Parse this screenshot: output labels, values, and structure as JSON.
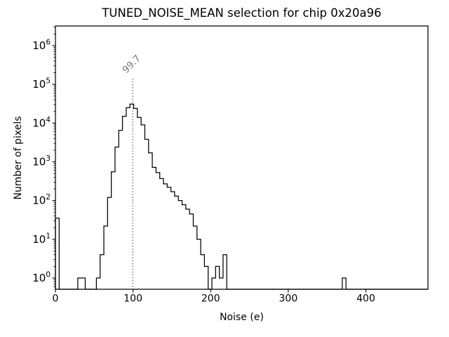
{
  "title": "TUNED_NOISE_MEAN selection for chip 0x20a96",
  "axes": {
    "xlabel": "Noise (e)",
    "ylabel": "Number of pixels",
    "x_ticks": [
      0,
      100,
      200,
      300,
      400
    ],
    "y_tick_exponents": [
      0,
      1,
      2,
      3,
      4,
      5,
      6
    ]
  },
  "annotation": {
    "label": "99.7",
    "value": 99.7,
    "color": "#7a7a7a"
  },
  "chart_data": {
    "type": "bar",
    "subtype": "step-histogram",
    "title": "TUNED_NOISE_MEAN selection for chip 0x20a96",
    "xlabel": "Noise (e)",
    "ylabel": "Number of pixels",
    "x_range": [
      0,
      480
    ],
    "y_scale": "log",
    "y_range": [
      0.5,
      3000000
    ],
    "grid": false,
    "legend": "none",
    "line_color": "#000000",
    "bin_width": 4.8,
    "bins_nonzero": [
      [
        0,
        35
      ],
      [
        28.8,
        1
      ],
      [
        33.6,
        1
      ],
      [
        52.8,
        1
      ],
      [
        57.6,
        4
      ],
      [
        62.4,
        22
      ],
      [
        67.2,
        120
      ],
      [
        72,
        550
      ],
      [
        76.8,
        2400
      ],
      [
        81.6,
        6500
      ],
      [
        86.4,
        15000
      ],
      [
        91.2,
        25000
      ],
      [
        96,
        31000
      ],
      [
        100.8,
        24000
      ],
      [
        105.6,
        14000
      ],
      [
        110.4,
        9000
      ],
      [
        115.2,
        3800
      ],
      [
        120,
        1700
      ],
      [
        124.8,
        720
      ],
      [
        129.6,
        530
      ],
      [
        134.4,
        370
      ],
      [
        139.2,
        270
      ],
      [
        144,
        220
      ],
      [
        148.8,
        170
      ],
      [
        153.6,
        130
      ],
      [
        158.4,
        100
      ],
      [
        163.2,
        78
      ],
      [
        168,
        60
      ],
      [
        172.8,
        45
      ],
      [
        177.6,
        22
      ],
      [
        182.4,
        10
      ],
      [
        187.2,
        4
      ],
      [
        192,
        2
      ],
      [
        201.6,
        1
      ],
      [
        206.4,
        2
      ],
      [
        211.2,
        1
      ],
      [
        216,
        4
      ],
      [
        369.6,
        1
      ]
    ],
    "mean_line": {
      "x": 99.7,
      "label": "99.7",
      "style": "dotted",
      "color": "#7a7a7a"
    }
  }
}
